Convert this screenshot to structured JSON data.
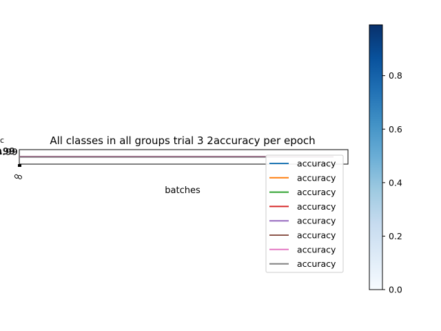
{
  "chart_data": [
    {
      "type": "line",
      "title": "All classes in all groups trial 3 2accuracy per epoch",
      "xlabel": "batches",
      "ylabel": "",
      "ytick_label_visible": "0.99",
      "legend_position": "lower right",
      "series": [
        {
          "name": "accuracy",
          "color": "#1f77b4",
          "values": [
            0.99,
            0.99
          ]
        },
        {
          "name": "accuracy",
          "color": "#ff7f0e",
          "values": [
            0.99,
            0.99
          ]
        },
        {
          "name": "accuracy",
          "color": "#2ca02c",
          "values": [
            0.99,
            0.99
          ]
        },
        {
          "name": "accuracy",
          "color": "#d62728",
          "values": [
            0.99,
            0.99
          ]
        },
        {
          "name": "accuracy",
          "color": "#9467bd",
          "values": [
            0.99,
            0.99
          ]
        },
        {
          "name": "accuracy",
          "color": "#8c564b",
          "values": [
            0.99,
            0.99
          ]
        },
        {
          "name": "accuracy",
          "color": "#e377c2",
          "values": [
            0.99,
            0.99
          ]
        },
        {
          "name": "accuracy",
          "color": "#7f7f7f",
          "values": [
            0.99,
            0.99
          ]
        }
      ]
    },
    {
      "type": "heatmap",
      "colorbar": {
        "colormap": "Blues",
        "range": [
          0,
          0.99
        ],
        "ticks": [
          "0.0",
          "0.2",
          "0.4",
          "0.6",
          "0.8"
        ],
        "tick_values": [
          0,
          0.2,
          0.4,
          0.6,
          0.8
        ]
      }
    }
  ]
}
